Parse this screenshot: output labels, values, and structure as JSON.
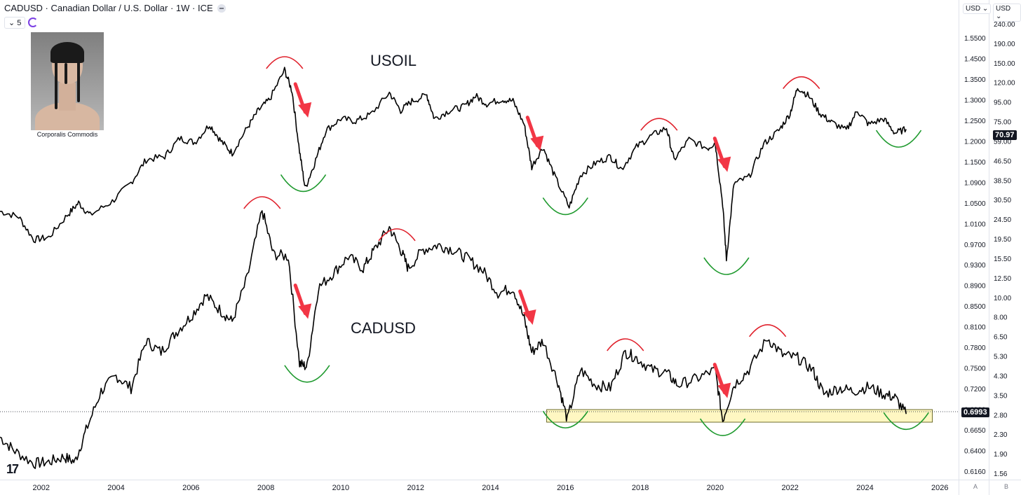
{
  "header": {
    "title": "CADUSD · Canadian Dollar / U.S. Dollar · 1W · ICE",
    "intervals_label": "5"
  },
  "avatar": {
    "caption": "Corporalis Commodis"
  },
  "labels": {
    "usoil": "USOIL",
    "cadusd": "CADUSD"
  },
  "axis_selectors": {
    "left": "USD",
    "right": "USD"
  },
  "axis_buttons": {
    "left": "A",
    "right": "B"
  },
  "colors": {
    "line": "#000000",
    "top_arc": "#e0202b",
    "bottom_arc": "#1f9a2f",
    "arrow": "#f23645",
    "zone_fill": "#fff7c2",
    "zone_border": "#4a4a00"
  },
  "chart_data": [
    {
      "type": "line",
      "name": "USOIL",
      "axis_scale": "log",
      "ticks": [
        "240.00",
        "190.00",
        "150.00",
        "120.00",
        "95.00",
        "75.00",
        "59.00",
        "46.50",
        "38.50",
        "30.50",
        "24.50",
        "19.50",
        "15.50",
        "12.50",
        "10.00",
        "8.00",
        "6.50",
        "5.30",
        "4.30",
        "3.50",
        "2.80",
        "2.30",
        "1.90",
        "1.56"
      ],
      "last_value": "70.97",
      "points": [
        [
          2000.9,
          27.7
        ],
        [
          2001.4,
          26.0
        ],
        [
          2001.8,
          20.0
        ],
        [
          2002.2,
          20.5
        ],
        [
          2002.7,
          26.5
        ],
        [
          2003.0,
          30.5
        ],
        [
          2003.3,
          26.5
        ],
        [
          2003.9,
          31.0
        ],
        [
          2004.4,
          38.5
        ],
        [
          2004.8,
          50.0
        ],
        [
          2005.3,
          52.0
        ],
        [
          2005.7,
          64.0
        ],
        [
          2006.1,
          61.0
        ],
        [
          2006.5,
          75.0
        ],
        [
          2006.8,
          62.0
        ],
        [
          2007.1,
          54.0
        ],
        [
          2007.5,
          72.0
        ],
        [
          2007.8,
          88.0
        ],
        [
          2008.1,
          100.0
        ],
        [
          2008.5,
          140.0
        ],
        [
          2008.7,
          110.0
        ],
        [
          2008.9,
          55.0
        ],
        [
          2009.05,
          36.0
        ],
        [
          2009.3,
          48.0
        ],
        [
          2009.6,
          70.0
        ],
        [
          2010.0,
          80.0
        ],
        [
          2010.4,
          78.0
        ],
        [
          2010.8,
          84.0
        ],
        [
          2011.3,
          108.0
        ],
        [
          2011.6,
          88.0
        ],
        [
          2011.9,
          98.0
        ],
        [
          2012.3,
          105.0
        ],
        [
          2012.5,
          80.0
        ],
        [
          2012.9,
          88.0
        ],
        [
          2013.3,
          92.0
        ],
        [
          2013.6,
          104.0
        ],
        [
          2013.9,
          95.0
        ],
        [
          2014.3,
          100.0
        ],
        [
          2014.6,
          98.0
        ],
        [
          2014.9,
          75.0
        ],
        [
          2015.1,
          46.0
        ],
        [
          2015.4,
          58.0
        ],
        [
          2015.7,
          42.0
        ],
        [
          2016.1,
          29.0
        ],
        [
          2016.4,
          42.0
        ],
        [
          2016.8,
          48.0
        ],
        [
          2017.2,
          52.0
        ],
        [
          2017.5,
          45.0
        ],
        [
          2017.9,
          58.0
        ],
        [
          2018.3,
          66.0
        ],
        [
          2018.7,
          72.0
        ],
        [
          2018.9,
          50.0
        ],
        [
          2019.3,
          63.0
        ],
        [
          2019.8,
          57.0
        ],
        [
          2020.0,
          61.0
        ],
        [
          2020.2,
          30.0
        ],
        [
          2020.3,
          16.0
        ],
        [
          2020.5,
          38.0
        ],
        [
          2020.9,
          41.0
        ],
        [
          2021.3,
          60.0
        ],
        [
          2021.7,
          70.0
        ],
        [
          2022.0,
          85.0
        ],
        [
          2022.2,
          115.0
        ],
        [
          2022.5,
          104.0
        ],
        [
          2022.8,
          85.0
        ],
        [
          2023.1,
          77.0
        ],
        [
          2023.5,
          70.0
        ],
        [
          2023.8,
          88.0
        ],
        [
          2024.1,
          75.0
        ],
        [
          2024.5,
          80.0
        ],
        [
          2024.8,
          68.0
        ],
        [
          2025.1,
          70.97
        ]
      ]
    },
    {
      "type": "line",
      "name": "CADUSD",
      "axis_scale": "log",
      "ticks": [
        "1.5500",
        "1.4500",
        "1.3500",
        "1.3000",
        "1.2500",
        "1.2000",
        "1.1500",
        "1.0900",
        "1.0500",
        "1.0100",
        "0.9700",
        "0.9300",
        "0.8900",
        "0.8500",
        "0.8100",
        "0.7800",
        "0.7500",
        "0.7200",
        "0.6900",
        "0.6650",
        "0.6400",
        "0.6160"
      ],
      "last_value": "0.6993",
      "points": [
        [
          2000.9,
          0.665
        ],
        [
          2001.3,
          0.645
        ],
        [
          2001.8,
          0.628
        ],
        [
          2002.2,
          0.63
        ],
        [
          2002.6,
          0.637
        ],
        [
          2002.9,
          0.63
        ],
        [
          2003.2,
          0.675
        ],
        [
          2003.6,
          0.735
        ],
        [
          2004.0,
          0.76
        ],
        [
          2004.4,
          0.74
        ],
        [
          2004.8,
          0.82
        ],
        [
          2005.2,
          0.8
        ],
        [
          2005.6,
          0.835
        ],
        [
          2006.0,
          0.865
        ],
        [
          2006.4,
          0.905
        ],
        [
          2006.8,
          0.875
        ],
        [
          2007.1,
          0.855
        ],
        [
          2007.5,
          0.94
        ],
        [
          2007.9,
          1.09
        ],
        [
          2008.2,
          0.99
        ],
        [
          2008.6,
          0.985
        ],
        [
          2008.9,
          0.78
        ],
        [
          2009.1,
          0.775
        ],
        [
          2009.4,
          0.92
        ],
        [
          2009.8,
          0.95
        ],
        [
          2010.2,
          0.985
        ],
        [
          2010.6,
          0.96
        ],
        [
          2010.9,
          1.0
        ],
        [
          2011.3,
          1.05
        ],
        [
          2011.6,
          1.0
        ],
        [
          2011.8,
          0.96
        ],
        [
          2012.2,
          1.0
        ],
        [
          2012.6,
          1.01
        ],
        [
          2013.0,
          1.0
        ],
        [
          2013.4,
          0.98
        ],
        [
          2013.8,
          0.955
        ],
        [
          2014.2,
          0.91
        ],
        [
          2014.6,
          0.92
        ],
        [
          2014.9,
          0.86
        ],
        [
          2015.1,
          0.8
        ],
        [
          2015.4,
          0.82
        ],
        [
          2015.8,
          0.75
        ],
        [
          2016.05,
          0.69
        ],
        [
          2016.4,
          0.77
        ],
        [
          2016.8,
          0.745
        ],
        [
          2017.2,
          0.74
        ],
        [
          2017.6,
          0.8
        ],
        [
          2017.9,
          0.79
        ],
        [
          2018.3,
          0.77
        ],
        [
          2018.7,
          0.765
        ],
        [
          2019.0,
          0.745
        ],
        [
          2019.5,
          0.755
        ],
        [
          2020.0,
          0.77
        ],
        [
          2020.2,
          0.69
        ],
        [
          2020.5,
          0.745
        ],
        [
          2020.9,
          0.77
        ],
        [
          2021.4,
          0.825
        ],
        [
          2021.8,
          0.795
        ],
        [
          2022.2,
          0.79
        ],
        [
          2022.6,
          0.77
        ],
        [
          2022.9,
          0.73
        ],
        [
          2023.3,
          0.74
        ],
        [
          2023.7,
          0.735
        ],
        [
          2024.1,
          0.742
        ],
        [
          2024.5,
          0.73
        ],
        [
          2024.8,
          0.725
        ],
        [
          2025.1,
          0.6993
        ]
      ]
    }
  ],
  "x_ticks": [
    "2002",
    "2004",
    "2006",
    "2008",
    "2010",
    "2012",
    "2014",
    "2016",
    "2018",
    "2020",
    "2022",
    "2024",
    "2026"
  ],
  "annotations": {
    "top_arcs": [
      [
        "USOIL",
        2008.5
      ],
      [
        "USOIL",
        2018.5
      ],
      [
        "USOIL",
        2022.3
      ],
      [
        "CADUSD",
        2007.9
      ],
      [
        "CADUSD",
        2011.5
      ],
      [
        "CADUSD",
        2017.6
      ],
      [
        "CADUSD",
        2021.4
      ]
    ],
    "bottom_arcs": [
      [
        "USOIL",
        2009.0
      ],
      [
        "USOIL",
        2016.0
      ],
      [
        "USOIL",
        2020.3
      ],
      [
        "USOIL",
        2024.9
      ],
      [
        "CADUSD",
        2009.1
      ],
      [
        "CADUSD",
        2016.0
      ],
      [
        "CADUSD",
        2020.2
      ],
      [
        "CADUSD",
        2025.1
      ]
    ],
    "arrows": [
      [
        "USOIL",
        2008.9
      ],
      [
        "USOIL",
        2015.1
      ],
      [
        "USOIL",
        2020.1
      ],
      [
        "CADUSD",
        2008.9
      ],
      [
        "CADUSD",
        2014.9
      ],
      [
        "CADUSD",
        2020.1
      ]
    ],
    "support_zone": {
      "from": 2015.5,
      "to": 2025.8
    }
  }
}
